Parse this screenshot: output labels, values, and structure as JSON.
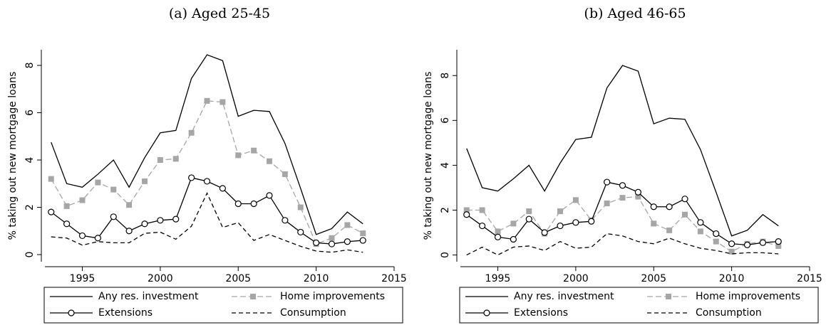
{
  "chart_data": [
    {
      "type": "line",
      "title": "(a) Aged 25-45",
      "ylabel": "% taking out new mortgage loans",
      "x": [
        1993,
        1994,
        1995,
        1996,
        1997,
        1998,
        1999,
        2000,
        2001,
        2002,
        2003,
        2004,
        2005,
        2006,
        2007,
        2008,
        2009,
        2010,
        2011,
        2012,
        2013
      ],
      "xlim": [
        1992.6,
        2015
      ],
      "xticks": [
        1995,
        2000,
        2005,
        2010,
        2015
      ],
      "ylim": [
        -0.3,
        8.66
      ],
      "yticks": [
        0,
        2,
        4,
        6,
        8
      ],
      "series": [
        {
          "name": "Any res. investment",
          "color": "#000000",
          "style": "solid",
          "values": [
            4.75,
            3.0,
            2.85,
            3.4,
            4.0,
            2.85,
            4.1,
            5.15,
            5.25,
            7.45,
            8.45,
            8.2,
            5.85,
            6.1,
            6.05,
            4.7,
            2.8,
            0.85,
            1.1,
            1.8,
            1.3
          ]
        },
        {
          "name": "Home improvements",
          "color": "#a6a6a6",
          "style": "dashed",
          "marker": "square",
          "values": [
            3.2,
            2.05,
            2.3,
            3.05,
            2.75,
            2.1,
            3.1,
            4.0,
            4.05,
            5.15,
            6.5,
            6.45,
            4.2,
            4.4,
            3.95,
            3.4,
            2.0,
            0.45,
            0.7,
            1.25,
            0.9
          ]
        },
        {
          "name": "Extensions",
          "color": "#000000",
          "style": "solid",
          "marker": "circle",
          "values": [
            1.8,
            1.3,
            0.8,
            0.7,
            1.6,
            1.0,
            1.3,
            1.45,
            1.5,
            3.25,
            3.1,
            2.8,
            2.15,
            2.15,
            2.5,
            1.45,
            0.95,
            0.5,
            0.45,
            0.55,
            0.6
          ]
        },
        {
          "name": "Consumption",
          "color": "#000000",
          "style": "longdash",
          "values": [
            0.75,
            0.7,
            0.4,
            0.55,
            0.5,
            0.5,
            0.9,
            0.95,
            0.65,
            1.2,
            2.6,
            1.15,
            1.35,
            0.6,
            0.85,
            0.6,
            0.35,
            0.15,
            0.1,
            0.2,
            0.1
          ]
        }
      ]
    },
    {
      "type": "line",
      "title": "(b) Aged 46-65",
      "ylabel": "% taking out new mortgage loans",
      "x": [
        1993,
        1994,
        1995,
        1996,
        1997,
        1998,
        1999,
        2000,
        2001,
        2002,
        2003,
        2004,
        2005,
        2006,
        2007,
        2008,
        2009,
        2010,
        2011,
        2012,
        2013
      ],
      "xlim": [
        1992.6,
        2015
      ],
      "xticks": [
        1995,
        2000,
        2005,
        2010,
        2015
      ],
      "ylim": [
        -0.3,
        9.15
      ],
      "yticks": [
        0,
        2,
        4,
        6,
        8
      ],
      "series": [
        {
          "name": "Any res. investment",
          "color": "#000000",
          "style": "solid",
          "values": [
            4.75,
            3.0,
            2.85,
            3.4,
            4.0,
            2.85,
            4.1,
            5.15,
            5.25,
            7.45,
            8.45,
            8.2,
            5.85,
            6.1,
            6.05,
            4.7,
            2.8,
            0.85,
            1.1,
            1.8,
            1.3
          ]
        },
        {
          "name": "Home improvements",
          "color": "#a6a6a6",
          "style": "dashed",
          "marker": "square",
          "values": [
            2.0,
            2.0,
            1.05,
            1.4,
            1.95,
            0.95,
            1.95,
            2.45,
            1.55,
            2.3,
            2.55,
            2.6,
            1.4,
            1.1,
            1.8,
            1.05,
            0.6,
            0.15,
            0.5,
            0.6,
            0.4
          ]
        },
        {
          "name": "Extensions",
          "color": "#000000",
          "style": "solid",
          "marker": "circle",
          "values": [
            1.8,
            1.3,
            0.8,
            0.7,
            1.6,
            1.0,
            1.3,
            1.45,
            1.5,
            3.25,
            3.1,
            2.8,
            2.15,
            2.15,
            2.5,
            1.45,
            0.95,
            0.5,
            0.45,
            0.55,
            0.6
          ]
        },
        {
          "name": "Consumption",
          "color": "#000000",
          "style": "longdash",
          "values": [
            0.0,
            0.35,
            0.0,
            0.35,
            0.4,
            0.2,
            0.6,
            0.3,
            0.35,
            0.95,
            0.85,
            0.6,
            0.5,
            0.75,
            0.5,
            0.3,
            0.2,
            0.05,
            0.1,
            0.1,
            0.05
          ]
        }
      ]
    }
  ]
}
